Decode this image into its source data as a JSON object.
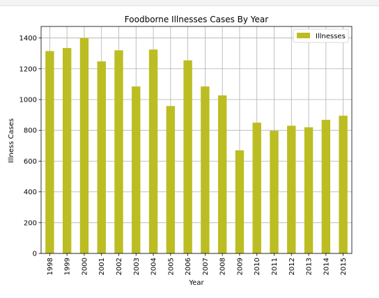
{
  "chart_data": {
    "type": "bar",
    "title": "Foodborne Illnesses Cases By Year",
    "xlabel": "Year",
    "ylabel": "Illness Cases",
    "categories": [
      "1998",
      "1999",
      "2000",
      "2001",
      "2002",
      "2003",
      "2004",
      "2005",
      "2006",
      "2007",
      "2008",
      "2009",
      "2010",
      "2011",
      "2012",
      "2013",
      "2014",
      "2015"
    ],
    "series": [
      {
        "name": "Illnesses",
        "color": "#bcbd22",
        "values": [
          1315,
          1335,
          1400,
          1248,
          1320,
          1085,
          1325,
          958,
          1255,
          1085,
          1027,
          670,
          850,
          797,
          830,
          820,
          868,
          895
        ]
      }
    ],
    "ylim": [
      0,
      1475
    ],
    "yticks": [
      0,
      200,
      400,
      600,
      800,
      1000,
      1200,
      1400
    ],
    "grid": true,
    "legend_position": "top-right"
  }
}
